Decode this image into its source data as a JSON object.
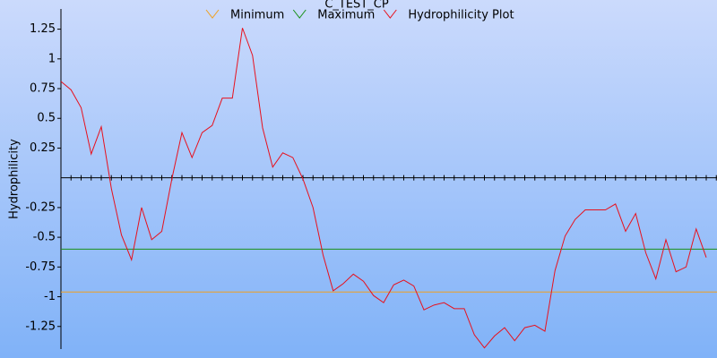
{
  "chart_data": {
    "type": "line",
    "title": "C_TEST_CP",
    "y_label": "Hydrophilicity",
    "ylim": [
      -1.44,
      1.42
    ],
    "yticks": [
      1.25,
      1,
      0.75,
      0.5,
      0.25,
      -0.25,
      -0.5,
      -0.75,
      -1,
      -1.25
    ],
    "reference_lines": [
      {
        "name": "Minimum",
        "color": "#f0a020",
        "values": [
          -0.96
        ]
      },
      {
        "name": "Maximum",
        "color": "#189018",
        "values": [
          -0.6
        ]
      }
    ],
    "series": [
      {
        "name": "Hydrophilicity Plot",
        "color": "#e8101c",
        "values": [
          0.81,
          0.74,
          0.59,
          0.2,
          0.43,
          -0.09,
          -0.48,
          -0.69,
          -0.25,
          -0.52,
          -0.45,
          -0.01,
          0.38,
          0.17,
          0.38,
          0.44,
          0.67,
          0.67,
          1.26,
          1.03,
          0.42,
          0.09,
          0.21,
          0.17,
          -0.01,
          -0.25,
          -0.65,
          -0.95,
          -0.89,
          -0.81,
          -0.87,
          -0.99,
          -1.05,
          -0.9,
          -0.86,
          -0.91,
          -1.11,
          -1.07,
          -1.05,
          -1.1,
          -1.1,
          -1.32,
          -1.43,
          -1.33,
          -1.26,
          -1.37,
          -1.26,
          -1.24,
          -1.29,
          -0.78,
          -0.49,
          -0.35,
          -0.27,
          -0.27,
          -0.27,
          -0.22,
          -0.45,
          -0.3,
          -0.63,
          -0.85,
          -0.52,
          -0.79,
          -0.75,
          -0.43,
          -0.67
        ]
      }
    ]
  }
}
